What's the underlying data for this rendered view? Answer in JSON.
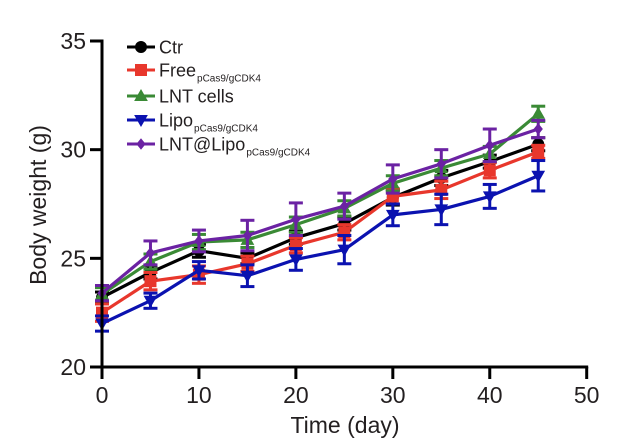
{
  "chart_data": {
    "type": "line",
    "title": "",
    "xlabel": "Time (day)",
    "ylabel": "Body weight (g)",
    "xlim": [
      0,
      50
    ],
    "ylim": [
      20,
      35
    ],
    "xticks": [
      0,
      10,
      20,
      30,
      40,
      50
    ],
    "yticks": [
      20,
      25,
      30,
      35
    ],
    "xtick_labels": [
      "0",
      "10",
      "20",
      "30",
      "40",
      "50"
    ],
    "ytick_labels": [
      "20",
      "25",
      "30",
      "35"
    ],
    "grid": false,
    "legend_position": "top-left",
    "x": [
      0,
      5,
      10,
      15,
      20,
      25,
      30,
      35,
      40,
      45
    ],
    "series": [
      {
        "name": "Ctr",
        "label_main": "Ctr",
        "label_sub": "",
        "color": "#000000",
        "marker": "circle",
        "values": [
          23.2,
          24.35,
          25.35,
          25.0,
          25.95,
          26.6,
          27.8,
          28.7,
          29.45,
          30.25
        ],
        "errors": [
          0.25,
          0.3,
          0.3,
          0.25,
          0.3,
          0.3,
          0.35,
          0.35,
          0.3,
          0.3
        ]
      },
      {
        "name": "Free pCas9/gCDK4",
        "label_main": "Free",
        "label_sub": "pCas9/gCDK4",
        "color": "#e8372c",
        "marker": "square",
        "values": [
          22.5,
          23.95,
          24.25,
          24.75,
          25.6,
          26.2,
          27.85,
          28.15,
          29.05,
          29.9
        ],
        "errors": [
          0.4,
          0.4,
          0.4,
          0.35,
          0.35,
          0.35,
          0.35,
          0.4,
          0.35,
          0.3
        ]
      },
      {
        "name": "LNT cells",
        "label_main": "LNT cells",
        "label_sub": "",
        "color": "#3a8a35",
        "marker": "triangle-up",
        "values": [
          23.35,
          24.85,
          25.75,
          25.85,
          26.55,
          27.3,
          28.45,
          29.15,
          29.8,
          31.65
        ],
        "errors": [
          0.3,
          0.35,
          0.35,
          0.35,
          0.35,
          0.35,
          0.35,
          0.35,
          0.35,
          0.35
        ]
      },
      {
        "name": "Lipo pCas9/gCDK4",
        "label_main": "Lipo",
        "label_sub": "pCas9/gCDK4",
        "color": "#0b12b0",
        "marker": "triangle-down",
        "values": [
          22.0,
          23.05,
          24.45,
          24.2,
          24.95,
          25.4,
          27.0,
          27.25,
          27.85,
          28.8
        ],
        "errors": [
          0.35,
          0.35,
          0.4,
          0.5,
          0.5,
          0.65,
          0.5,
          0.7,
          0.55,
          0.7
        ]
      },
      {
        "name": "LNT@Lipo pCas9/gCDK4",
        "label_main": "LNT@Lipo",
        "label_sub": "pCas9/gCDK4",
        "color": "#6b22a3",
        "marker": "diamond",
        "values": [
          23.4,
          25.25,
          25.8,
          26.05,
          26.8,
          27.4,
          28.65,
          29.35,
          30.2,
          30.95
        ],
        "errors": [
          0.35,
          0.55,
          0.5,
          0.7,
          0.75,
          0.6,
          0.65,
          0.65,
          0.75,
          0.4
        ]
      }
    ]
  }
}
